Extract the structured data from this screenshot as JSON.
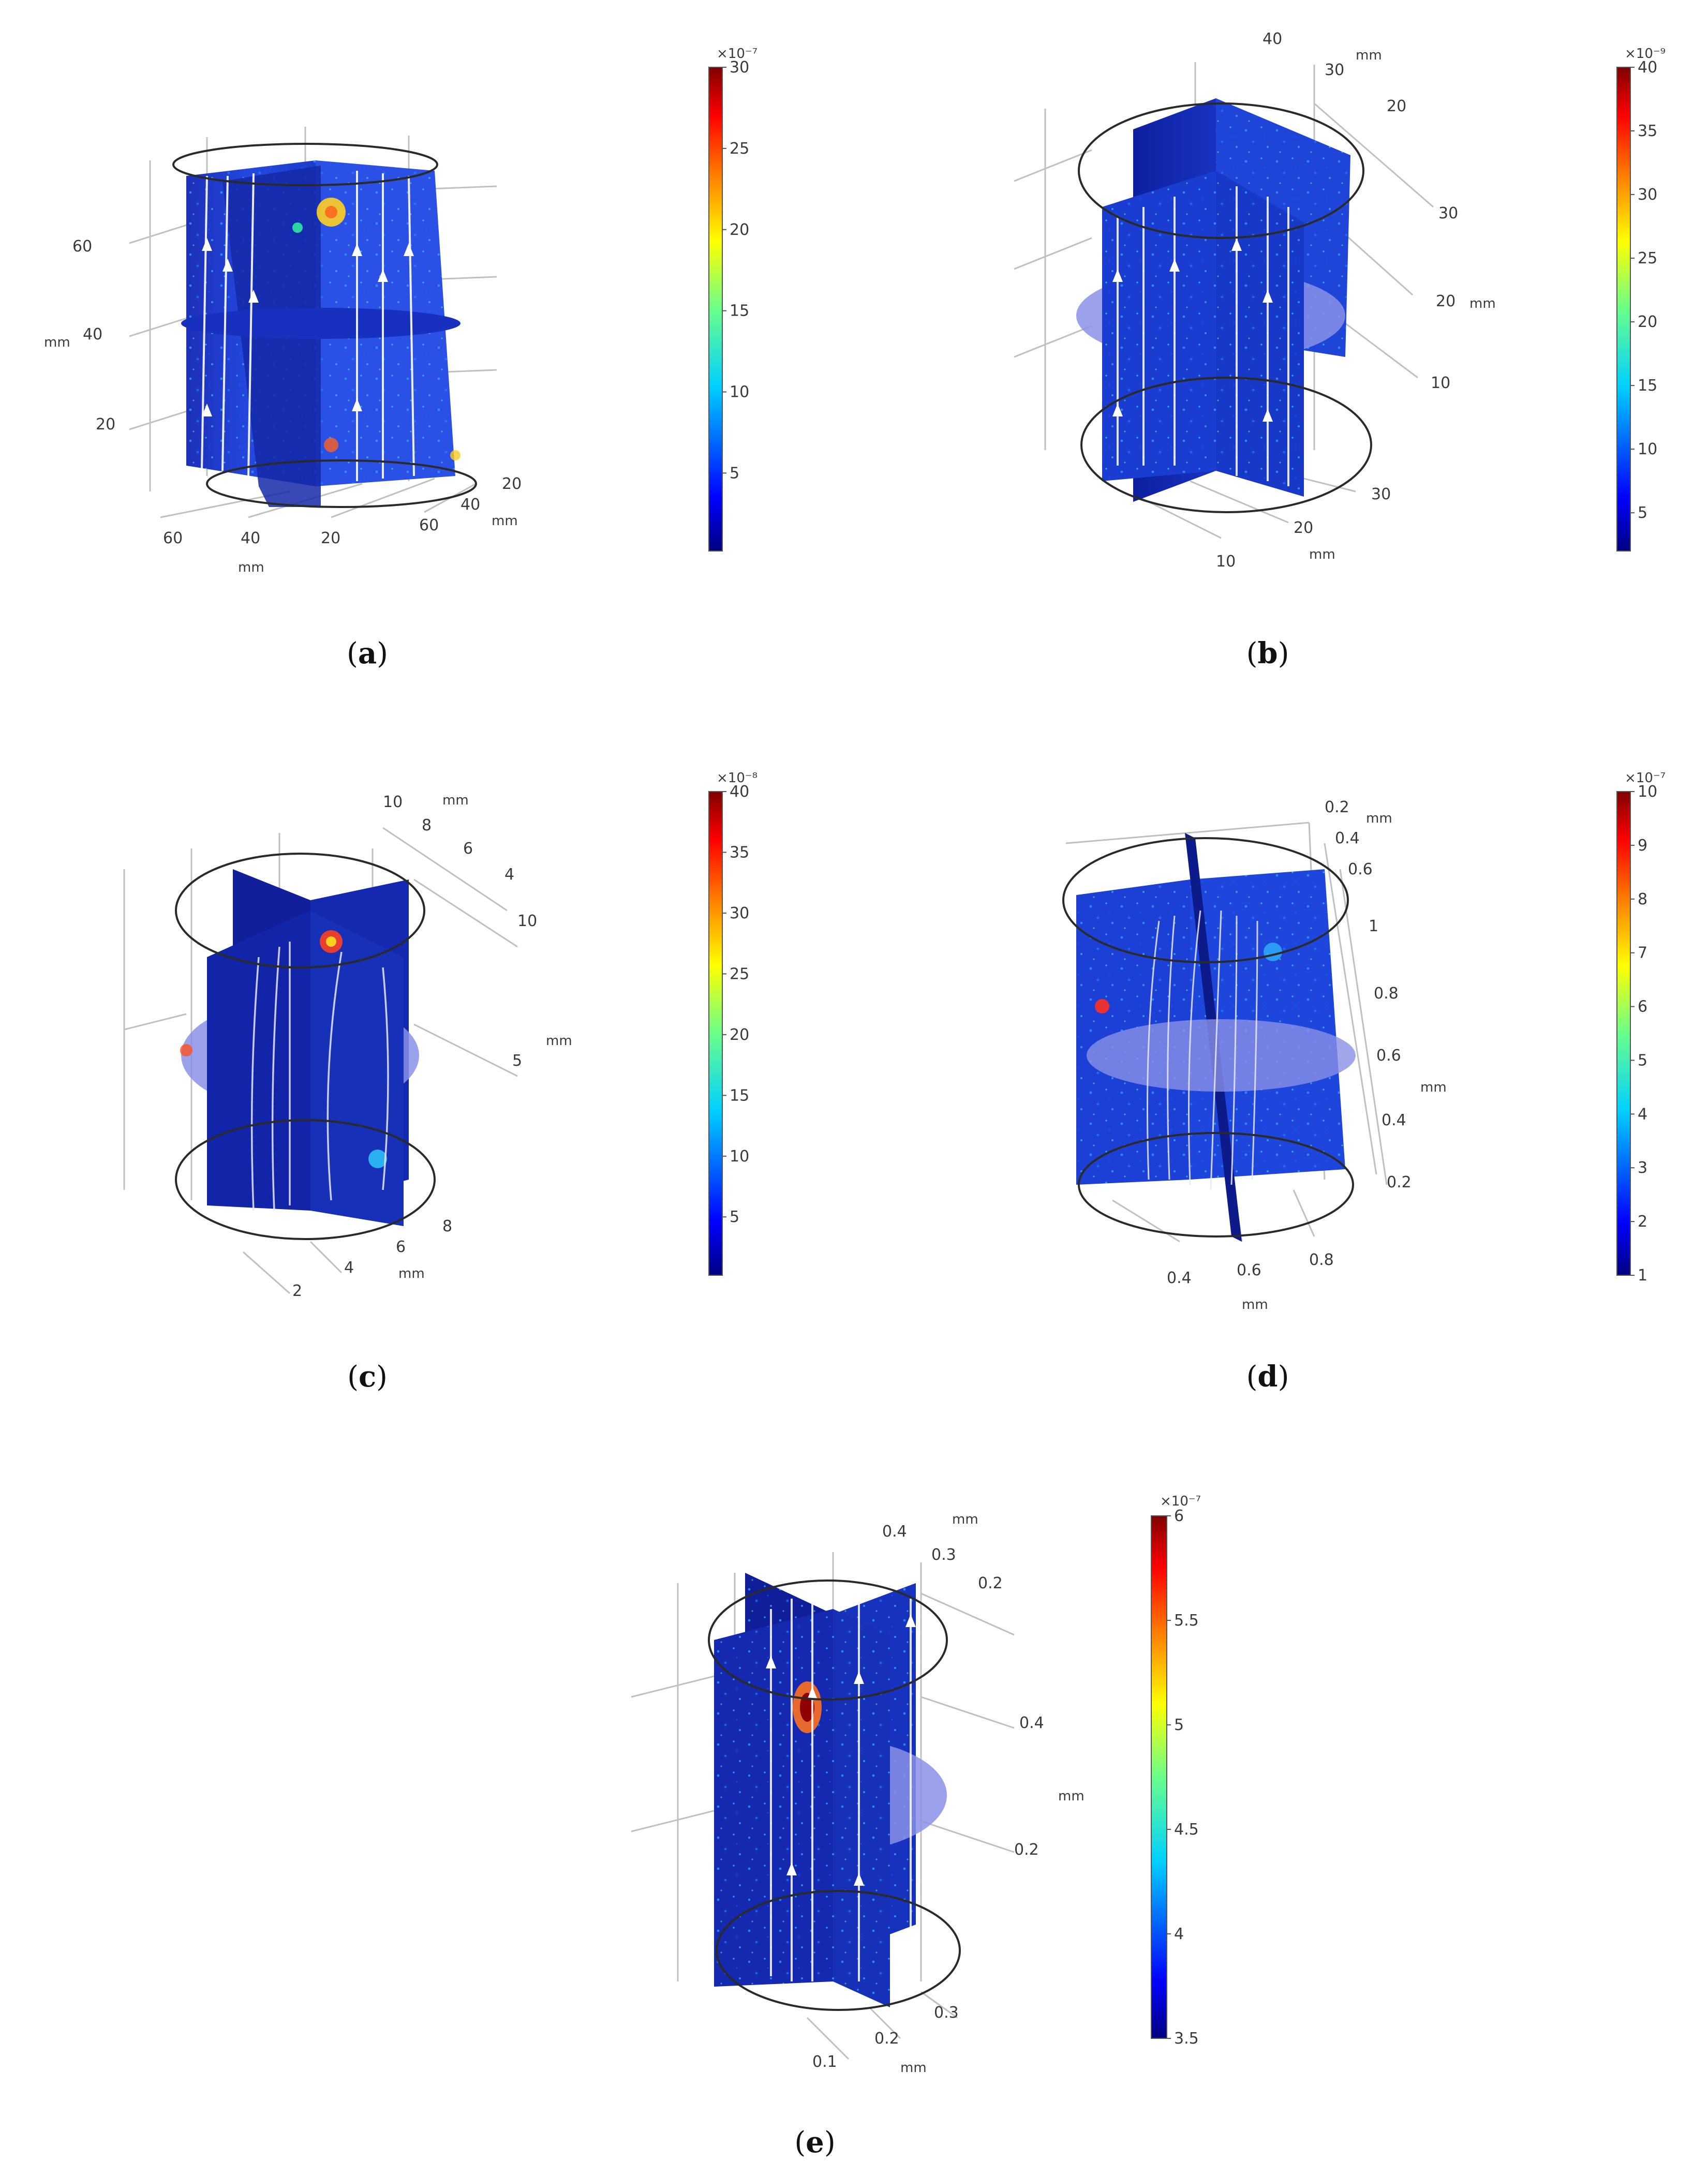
{
  "panels": [
    {
      "id": "a",
      "caption_label": "a",
      "colorbar": {
        "exponent": "×10⁻⁷",
        "ticks": [
          "30",
          "25",
          "20",
          "15",
          "10",
          "5"
        ],
        "min": 0.2,
        "max": 30
      },
      "axis_labels": [
        {
          "t": "60"
        },
        {
          "t": "40"
        },
        {
          "t": "20"
        },
        {
          "t": "mm"
        },
        {
          "t": "60"
        },
        {
          "t": "40"
        },
        {
          "t": "20"
        },
        {
          "t": "mm"
        },
        {
          "t": "60"
        },
        {
          "t": "40"
        },
        {
          "t": "20"
        },
        {
          "t": "mm"
        }
      ]
    },
    {
      "id": "b",
      "caption_label": "b",
      "colorbar": {
        "exponent": "×10⁻⁹",
        "ticks": [
          "40",
          "35",
          "30",
          "25",
          "20",
          "15",
          "10",
          "5"
        ],
        "min": 2,
        "max": 40
      },
      "axis_labels": [
        {
          "t": "40"
        },
        {
          "t": "30"
        },
        {
          "t": "20"
        },
        {
          "t": "mm"
        },
        {
          "t": "30"
        },
        {
          "t": "20"
        },
        {
          "t": "10"
        },
        {
          "t": "mm"
        },
        {
          "t": "30"
        },
        {
          "t": "20"
        },
        {
          "t": "10"
        },
        {
          "t": "mm"
        }
      ]
    },
    {
      "id": "c",
      "caption_label": "c",
      "colorbar": {
        "exponent": "×10⁻⁸",
        "ticks": [
          "40",
          "35",
          "30",
          "25",
          "20",
          "15",
          "10",
          "5"
        ],
        "min": 0.2,
        "max": 40
      },
      "axis_labels": [
        {
          "t": "10"
        },
        {
          "t": "8"
        },
        {
          "t": "6"
        },
        {
          "t": "4"
        },
        {
          "t": "mm"
        },
        {
          "t": "10"
        },
        {
          "t": "5"
        },
        {
          "t": "mm"
        },
        {
          "t": "8"
        },
        {
          "t": "6"
        },
        {
          "t": "4"
        },
        {
          "t": "2"
        },
        {
          "t": "mm"
        }
      ]
    },
    {
      "id": "d",
      "caption_label": "d",
      "colorbar": {
        "exponent": "×10⁻⁷",
        "ticks": [
          "10",
          "9",
          "8",
          "7",
          "6",
          "5",
          "4",
          "3",
          "2",
          "1"
        ],
        "min": 1,
        "max": 10
      },
      "axis_labels": [
        {
          "t": "0.2"
        },
        {
          "t": "mm"
        },
        {
          "t": "0.4"
        },
        {
          "t": "0.6"
        },
        {
          "t": "1"
        },
        {
          "t": "0.8"
        },
        {
          "t": "0.6"
        },
        {
          "t": "mm"
        },
        {
          "t": "0.4"
        },
        {
          "t": "0.2"
        },
        {
          "t": "0.4"
        },
        {
          "t": "0.6"
        },
        {
          "t": "0.8"
        },
        {
          "t": "mm"
        }
      ]
    },
    {
      "id": "e",
      "caption_label": "e",
      "colorbar": {
        "exponent": "×10⁻⁷",
        "ticks": [
          "6",
          "5.5",
          "5",
          "4.5",
          "4",
          "3.5"
        ],
        "min": 3.5,
        "max": 6
      },
      "axis_labels": [
        {
          "t": "mm"
        },
        {
          "t": "0.4"
        },
        {
          "t": "0.3"
        },
        {
          "t": "0.2"
        },
        {
          "t": "0.4"
        },
        {
          "t": "mm"
        },
        {
          "t": "0.2"
        },
        {
          "t": "0.3"
        },
        {
          "t": "0.2"
        },
        {
          "t": "0.1"
        },
        {
          "t": "mm"
        }
      ]
    }
  ],
  "colors": {
    "jet_low": "#000080",
    "jet_high": "#800000",
    "field_blue": "#1a3fd0",
    "slice_disc": "#8890e0",
    "outline": "#2a2a2a",
    "grid": "#b8b8b8",
    "streamline": "#ffffff"
  }
}
